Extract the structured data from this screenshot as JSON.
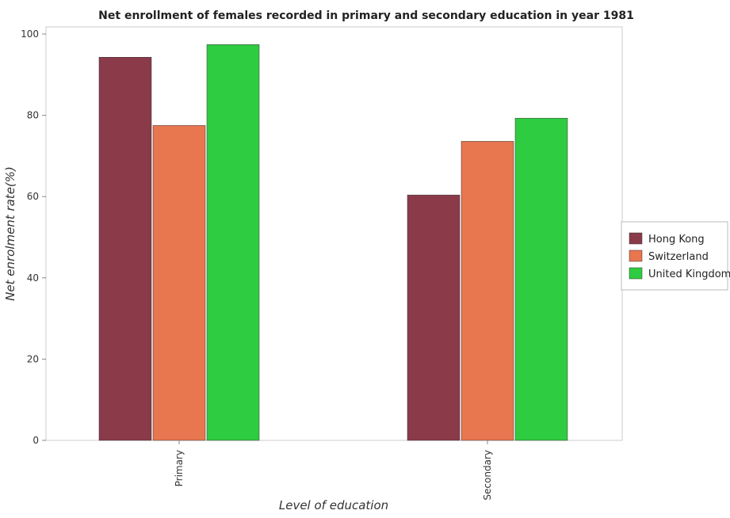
{
  "chart_data": {
    "type": "bar",
    "title": "Net enrollment of females recorded in primary and secondary education in year 1981",
    "xlabel": "Level of education",
    "ylabel": "Net enrolment rate(%)",
    "categories": [
      "Primary",
      "Secondary"
    ],
    "series": [
      {
        "name": "Hong Kong",
        "values": [
          94.3,
          60.4
        ],
        "color": "#8b3a4a"
      },
      {
        "name": "Switzerland",
        "values": [
          77.5,
          73.6
        ],
        "color": "#e8764f"
      },
      {
        "name": "United Kingdom",
        "values": [
          97.4,
          79.3
        ],
        "color": "#2ecc40"
      }
    ],
    "ylim": [
      0,
      100
    ],
    "yticks": [
      0,
      20,
      40,
      60,
      80,
      100
    ],
    "grid": false,
    "legend_position": "right"
  }
}
